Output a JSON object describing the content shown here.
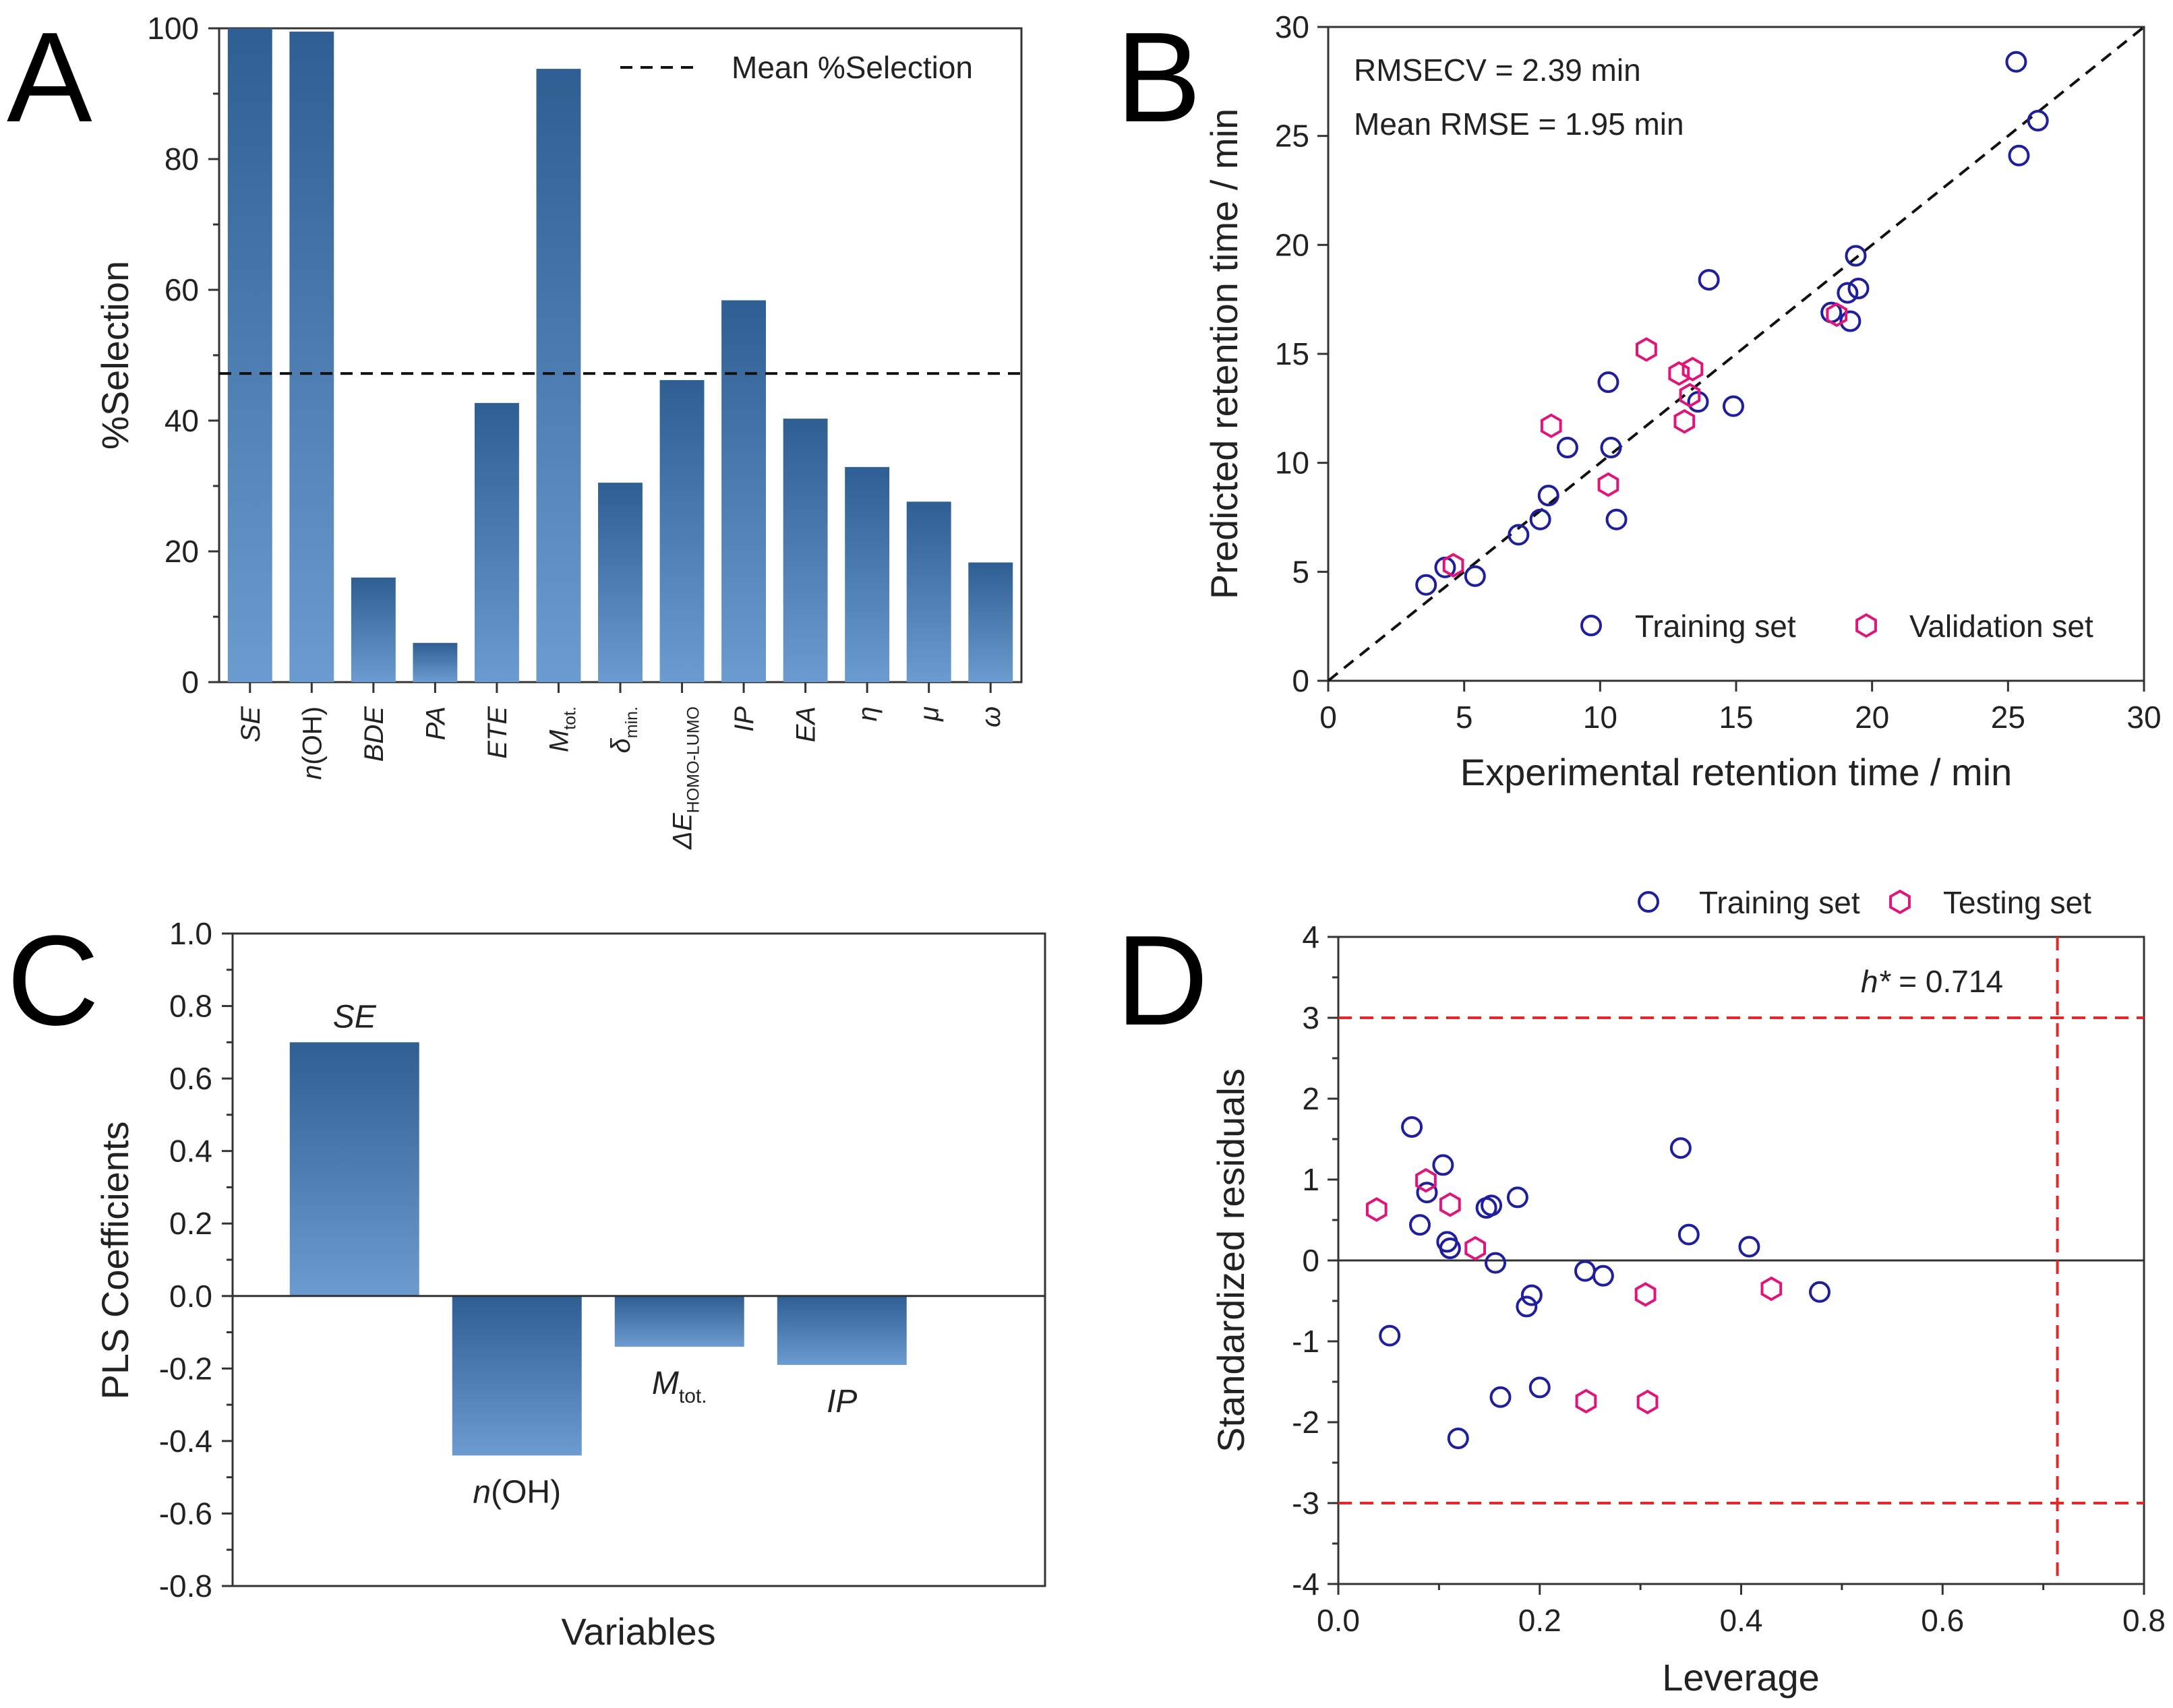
{
  "colors": {
    "bar_top": "#2f5f92",
    "bar_bottom": "#6b9bcf",
    "training_marker": "#1f1f9e",
    "validation_marker": "#e0157c",
    "limit_line": "#e8262a",
    "axis": "#333333"
  },
  "chart_data": [
    {
      "panel": "A",
      "type": "bar",
      "ylabel": "%Selection",
      "xlabel": "",
      "ylim": [
        0,
        100
      ],
      "yticks": [
        0,
        20,
        40,
        60,
        80,
        100
      ],
      "legend": "Mean %Selection",
      "mean_line": 47.2,
      "categories": [
        {
          "main": "SE",
          "sub": "",
          "value": 100
        },
        {
          "main": "n",
          "tail": "(OH)",
          "sub": "",
          "value": 99.5
        },
        {
          "main": "BDE",
          "sub": "",
          "value": 16
        },
        {
          "main": "PA",
          "sub": "",
          "value": 6
        },
        {
          "main": "ETE",
          "sub": "",
          "value": 42.7
        },
        {
          "main": "M",
          "sub": "tot.",
          "value": 93.8
        },
        {
          "main": "δ",
          "sub": "min.",
          "value": 30.5
        },
        {
          "main": "ΔE",
          "sub": "HOMO-LUMO",
          "value": 46.2
        },
        {
          "main": "IP",
          "sub": "",
          "value": 58.4
        },
        {
          "main": "EA",
          "sub": "",
          "value": 40.3
        },
        {
          "main": "η",
          "sub": "",
          "value": 32.9
        },
        {
          "main": "μ",
          "sub": "",
          "value": 27.6
        },
        {
          "main": "ω",
          "sub": "",
          "value": 18.3
        }
      ]
    },
    {
      "panel": "B",
      "type": "scatter",
      "xlabel": "Experimental retention time / min",
      "ylabel": "Predicted retention time / min",
      "xlim": [
        0,
        30
      ],
      "ylim": [
        0,
        30
      ],
      "xticks": [
        0,
        5,
        10,
        15,
        20,
        25,
        30
      ],
      "yticks": [
        0,
        5,
        10,
        15,
        20,
        25,
        30
      ],
      "annotations": [
        "RMSECV = 2.39 min",
        "Mean RMSE = 1.95 min"
      ],
      "identity_line": true,
      "series": [
        {
          "name": "Training set",
          "marker": "circle",
          "points": [
            [
              3.6,
              4.4
            ],
            [
              4.3,
              5.2
            ],
            [
              5.4,
              4.8
            ],
            [
              7.0,
              6.7
            ],
            [
              7.8,
              7.4
            ],
            [
              8.1,
              8.5
            ],
            [
              8.8,
              10.7
            ],
            [
              10.3,
              13.7
            ],
            [
              10.4,
              10.7
            ],
            [
              10.6,
              7.4
            ],
            [
              13.6,
              12.8
            ],
            [
              14.0,
              18.4
            ],
            [
              14.9,
              12.6
            ],
            [
              18.5,
              16.9
            ],
            [
              19.1,
              17.8
            ],
            [
              19.2,
              16.5
            ],
            [
              19.4,
              19.5
            ],
            [
              19.5,
              18.0
            ],
            [
              25.3,
              28.4
            ],
            [
              25.4,
              24.1
            ],
            [
              26.1,
              25.7
            ]
          ]
        },
        {
          "name": "Validation set",
          "marker": "hexagon",
          "points": [
            [
              4.6,
              5.3
            ],
            [
              8.2,
              11.7
            ],
            [
              10.3,
              9.0
            ],
            [
              11.7,
              15.2
            ],
            [
              12.9,
              14.1
            ],
            [
              13.1,
              11.9
            ],
            [
              13.3,
              13.1
            ],
            [
              13.4,
              14.3
            ],
            [
              18.7,
              16.8
            ]
          ]
        }
      ]
    },
    {
      "panel": "C",
      "type": "bar",
      "xlabel": "Variables",
      "ylabel": "PLS Coefficients",
      "ylim": [
        -0.8,
        1.0
      ],
      "yticks": [
        "1.0",
        "0.8",
        "0.6",
        "0.4",
        "0.2",
        "0.0",
        "-0.2",
        "-0.4",
        "-0.6",
        "-0.8"
      ],
      "bars": [
        {
          "main": "SE",
          "sub": "",
          "value": 0.7
        },
        {
          "main": "n",
          "tail": "(OH)",
          "sub": "",
          "value": -0.44
        },
        {
          "main": "M",
          "sub": "tot.",
          "value": -0.14
        },
        {
          "main": "IP",
          "sub": "",
          "value": -0.19
        }
      ]
    },
    {
      "panel": "D",
      "type": "scatter",
      "xlabel": "Leverage",
      "ylabel": "Standardized residuals",
      "xlim": [
        0.0,
        0.8
      ],
      "ylim": [
        -4,
        4
      ],
      "xticks": [
        "0.0",
        "0.2",
        "0.4",
        "0.6",
        "0.8"
      ],
      "yticks": [
        "4",
        "3",
        "2",
        "1",
        "0",
        "-1",
        "-2",
        "-3",
        "-4"
      ],
      "warning_leverage": 0.714,
      "warning_label_italic": "h*",
      "warning_label_rest": " = 0.714",
      "residual_limits": [
        3,
        -3
      ],
      "series": [
        {
          "name": "Training set",
          "marker": "circle",
          "points": [
            [
              0.051,
              -0.93
            ],
            [
              0.073,
              1.65
            ],
            [
              0.081,
              0.44
            ],
            [
              0.088,
              0.84
            ],
            [
              0.104,
              1.18
            ],
            [
              0.108,
              0.23
            ],
            [
              0.111,
              0.15
            ],
            [
              0.119,
              -2.2
            ],
            [
              0.147,
              0.65
            ],
            [
              0.152,
              0.68
            ],
            [
              0.156,
              -0.03
            ],
            [
              0.161,
              -1.69
            ],
            [
              0.178,
              0.78
            ],
            [
              0.187,
              -0.57
            ],
            [
              0.192,
              -0.43
            ],
            [
              0.2,
              -1.57
            ],
            [
              0.245,
              -0.13
            ],
            [
              0.263,
              -0.19
            ],
            [
              0.34,
              1.39
            ],
            [
              0.348,
              0.32
            ],
            [
              0.408,
              0.17
            ],
            [
              0.478,
              -0.39
            ]
          ]
        },
        {
          "name": "Testing set",
          "marker": "hexagon",
          "points": [
            [
              0.038,
              0.63
            ],
            [
              0.087,
              0.99
            ],
            [
              0.111,
              0.69
            ],
            [
              0.136,
              0.15
            ],
            [
              0.246,
              -1.74
            ],
            [
              0.305,
              -0.42
            ],
            [
              0.307,
              -1.75
            ],
            [
              0.43,
              -0.35
            ]
          ]
        }
      ]
    }
  ]
}
